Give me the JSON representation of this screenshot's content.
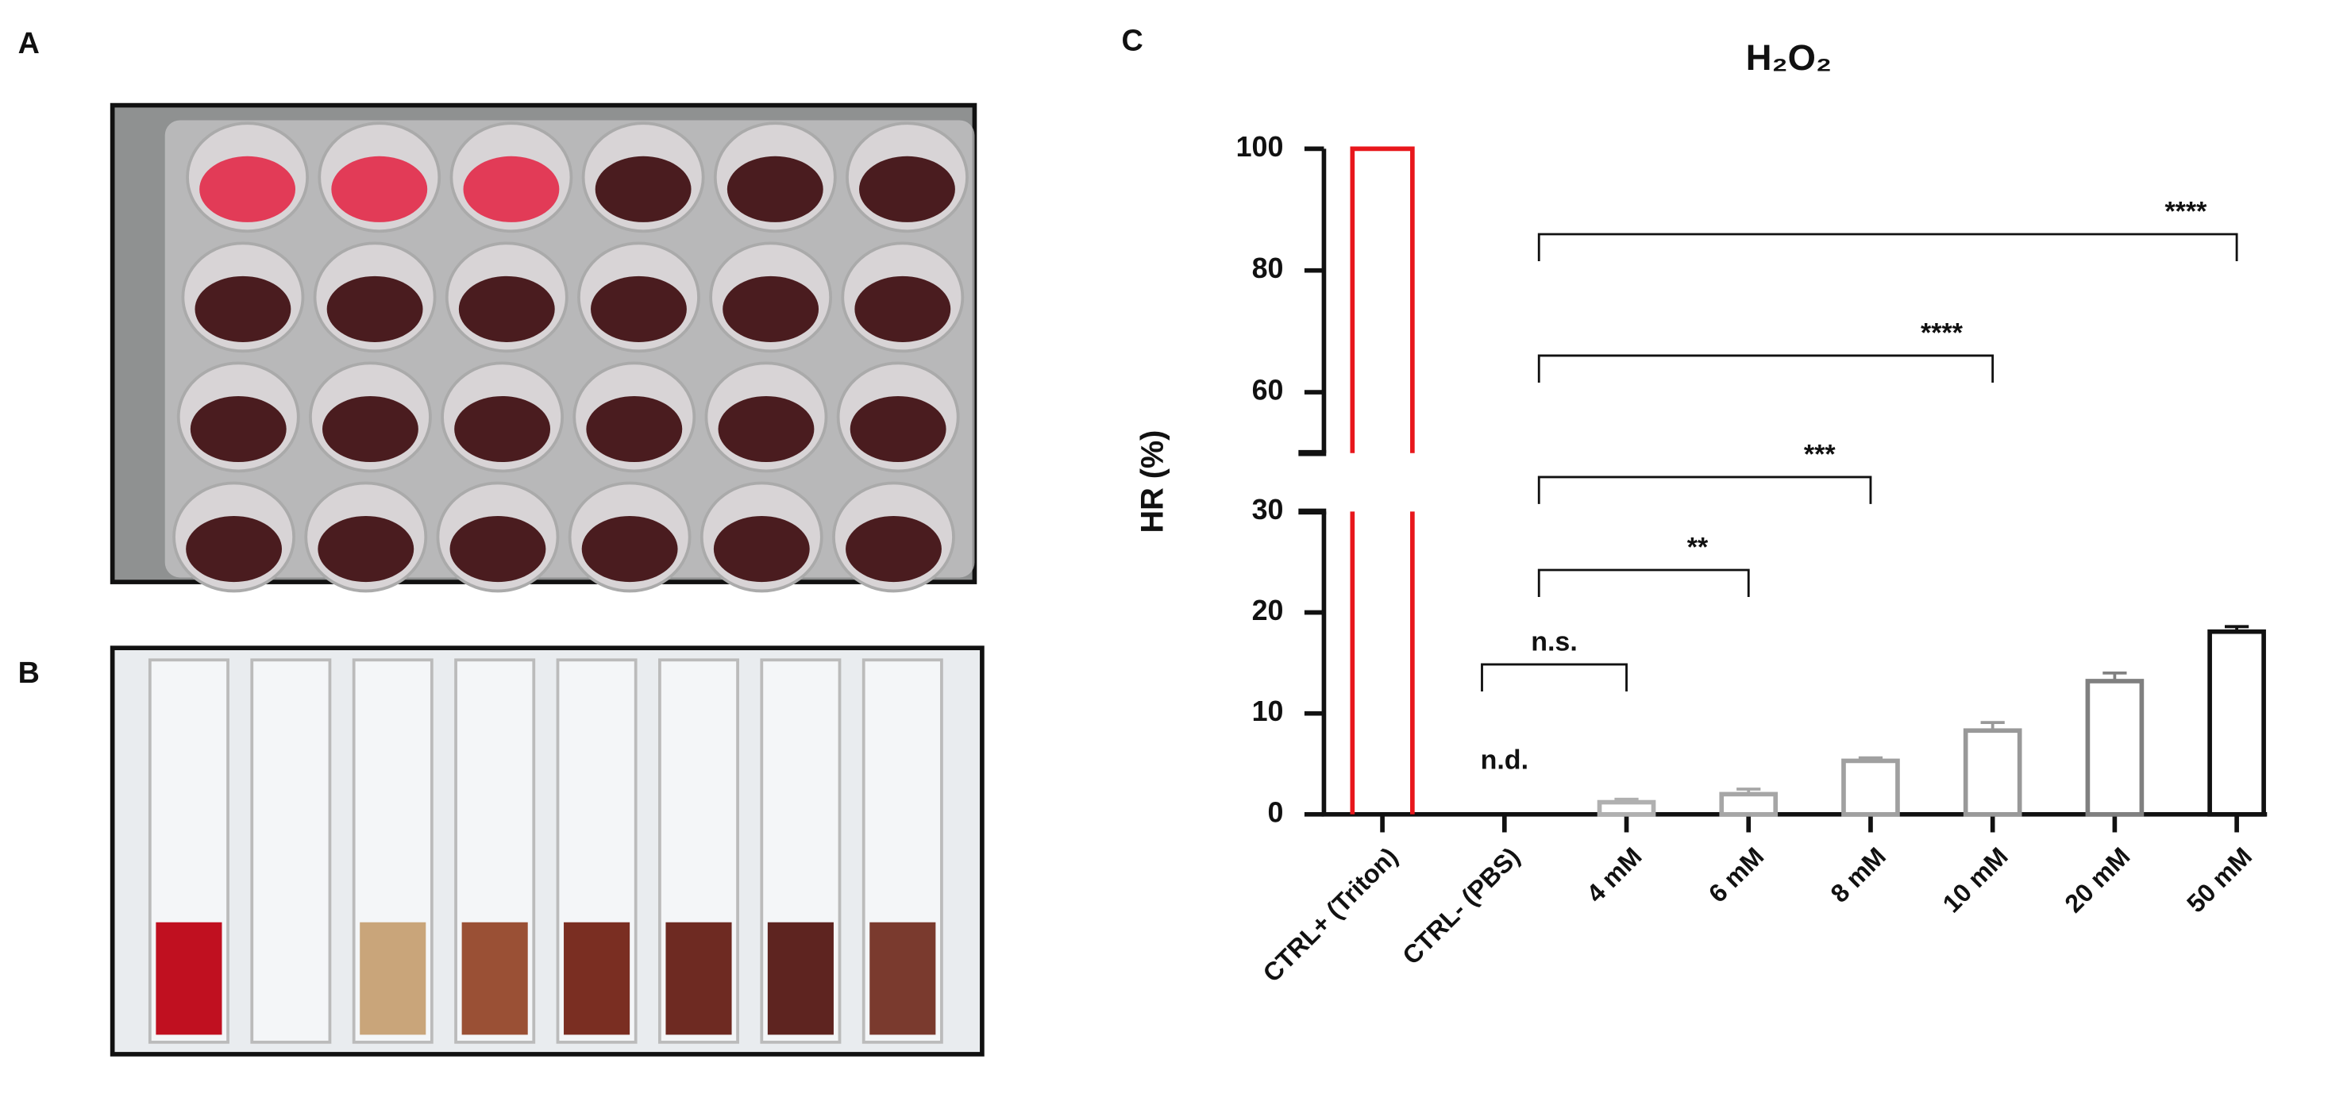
{
  "panel_labels": [
    "A",
    "B",
    "C"
  ],
  "chart_data": {
    "type": "bar",
    "title": "H₂O₂",
    "y_label": "HR  (%)",
    "categories": [
      "CTRL+ (Triton)",
      "CTRL- (PBS)",
      "4 mM",
      "6 mM",
      "8 mM",
      "10 mM",
      "20 mM",
      "50 mM"
    ],
    "values": [
      100,
      null,
      1.2,
      2.0,
      5.3,
      8.3,
      13.2,
      18.1
    ],
    "errors": [
      null,
      null,
      0.3,
      0.5,
      0.3,
      0.8,
      0.8,
      0.5
    ],
    "value_labels": [
      null,
      "n.d.",
      null,
      null,
      null,
      null,
      null,
      null
    ],
    "colors": [
      "#e8171c",
      "#777777",
      "#b0b0b0",
      "#a6a6a6",
      "#a0a0a0",
      "#999999",
      "#808080",
      "#111111"
    ],
    "ylim": [
      0,
      100
    ],
    "ybreak": [
      30,
      50
    ],
    "yticks": [
      0,
      10,
      20,
      30,
      60,
      80,
      100
    ],
    "annotations": [
      {
        "from": 1,
        "to": 2,
        "label": "n.s."
      },
      {
        "from": 1,
        "to": 3,
        "label": "**"
      },
      {
        "from": 1,
        "to": 4,
        "label": "***"
      },
      {
        "from": 1,
        "to": 5,
        "label": "****"
      },
      {
        "from": 1,
        "to": 7,
        "label": "****"
      }
    ]
  }
}
